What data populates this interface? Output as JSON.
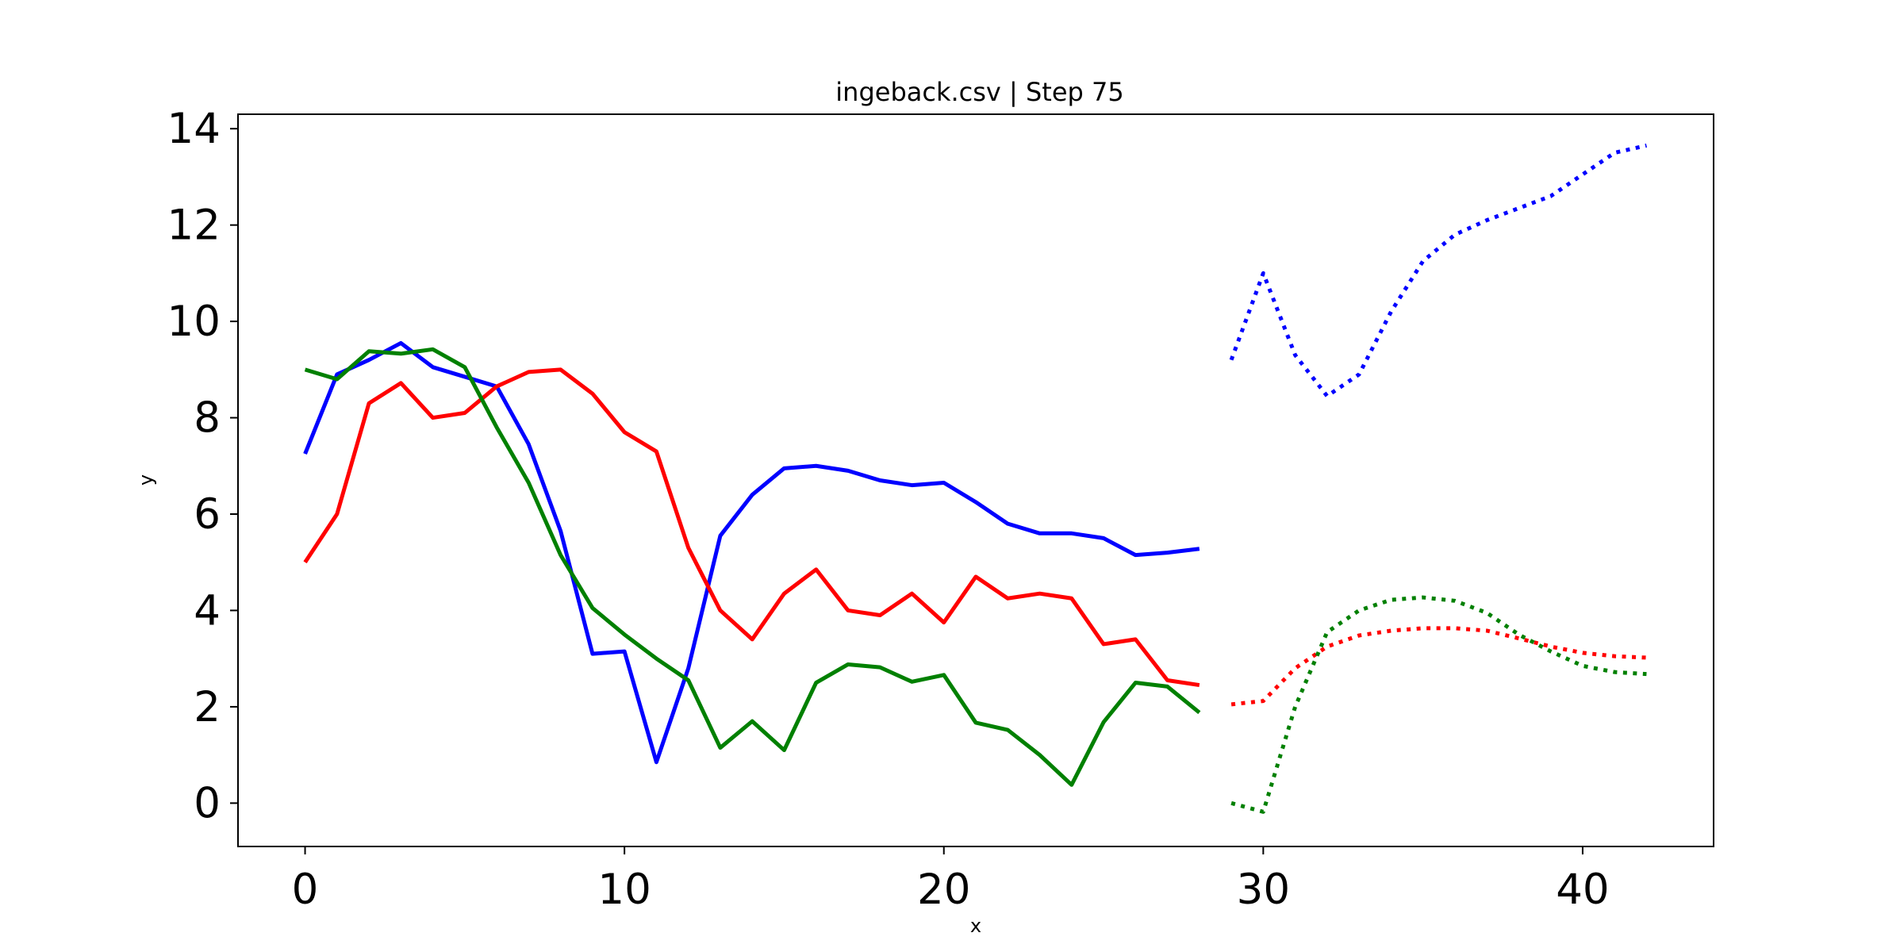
{
  "chart_data": {
    "type": "line",
    "title": "ingeback.csv | Step 75",
    "xlabel": "x",
    "ylabel": "y",
    "xlim": [
      -2.1,
      44.1
    ],
    "ylim": [
      -0.9,
      14.3
    ],
    "xticks": [
      0,
      10,
      20,
      30,
      40
    ],
    "yticks": [
      0,
      2,
      4,
      6,
      8,
      10,
      12,
      14
    ],
    "grid": false,
    "legend": "none",
    "series": [
      {
        "color": "#0000ff",
        "style": "solid",
        "x": [
          0,
          1,
          2,
          3,
          4,
          5,
          6,
          7,
          8,
          9,
          10,
          11,
          12,
          13,
          14,
          15,
          16,
          17,
          18,
          19,
          20,
          21,
          22,
          23,
          24,
          25,
          26,
          27,
          28
        ],
        "values": [
          7.25,
          8.9,
          9.2,
          9.55,
          9.05,
          8.85,
          8.65,
          7.45,
          5.65,
          3.1,
          3.15,
          0.85,
          2.8,
          5.55,
          6.4,
          6.95,
          7.0,
          6.9,
          6.7,
          6.6,
          6.65,
          6.25,
          5.8,
          5.6,
          5.6,
          5.5,
          5.15,
          5.2,
          5.28
        ]
      },
      {
        "color": "#ff0000",
        "style": "solid",
        "x": [
          0,
          1,
          2,
          3,
          4,
          5,
          6,
          7,
          8,
          9,
          10,
          11,
          12,
          13,
          14,
          15,
          16,
          17,
          18,
          19,
          20,
          21,
          22,
          23,
          24,
          25,
          26,
          27,
          28
        ],
        "values": [
          5.0,
          6.0,
          8.3,
          8.72,
          8.0,
          8.1,
          8.65,
          8.95,
          9.0,
          8.5,
          7.7,
          7.3,
          5.3,
          4.0,
          3.4,
          4.35,
          4.85,
          4.0,
          3.9,
          4.35,
          3.75,
          4.7,
          4.25,
          4.35,
          4.25,
          3.3,
          3.4,
          2.55,
          2.45
        ]
      },
      {
        "color": "#008000",
        "style": "solid",
        "x": [
          0,
          1,
          2,
          3,
          4,
          5,
          6,
          7,
          8,
          9,
          10,
          11,
          12,
          13,
          14,
          15,
          16,
          17,
          18,
          19,
          20,
          21,
          22,
          23,
          24,
          25,
          26,
          27,
          28
        ],
        "values": [
          9.0,
          8.8,
          9.38,
          9.33,
          9.42,
          9.05,
          7.8,
          6.65,
          5.15,
          4.05,
          3.5,
          3.0,
          2.55,
          1.15,
          1.7,
          1.1,
          2.5,
          2.88,
          2.82,
          2.52,
          2.66,
          1.67,
          1.52,
          1.0,
          0.38,
          1.68,
          2.5,
          2.42,
          1.88
        ]
      },
      {
        "color": "#0000ff",
        "style": "dotted",
        "x": [
          29,
          30,
          31,
          32,
          33,
          34,
          35,
          36,
          37,
          38,
          39,
          40,
          41,
          42
        ],
        "values": [
          9.2,
          11.0,
          9.3,
          8.45,
          8.9,
          10.2,
          11.25,
          11.8,
          12.1,
          12.35,
          12.6,
          13.05,
          13.5,
          13.65
        ]
      },
      {
        "color": "#ff0000",
        "style": "dotted",
        "x": [
          29,
          30,
          31,
          32,
          33,
          34,
          35,
          36,
          37,
          38,
          39,
          40,
          41,
          42
        ],
        "values": [
          2.05,
          2.12,
          2.8,
          3.25,
          3.48,
          3.58,
          3.63,
          3.63,
          3.58,
          3.42,
          3.25,
          3.12,
          3.05,
          3.02
        ]
      },
      {
        "color": "#008000",
        "style": "dotted",
        "x": [
          29,
          30,
          31,
          32,
          33,
          34,
          35,
          36,
          37,
          38,
          39,
          40,
          41,
          42
        ],
        "values": [
          0.0,
          -0.18,
          2.0,
          3.55,
          4.0,
          4.22,
          4.27,
          4.2,
          3.95,
          3.5,
          3.15,
          2.85,
          2.72,
          2.68
        ]
      }
    ]
  }
}
